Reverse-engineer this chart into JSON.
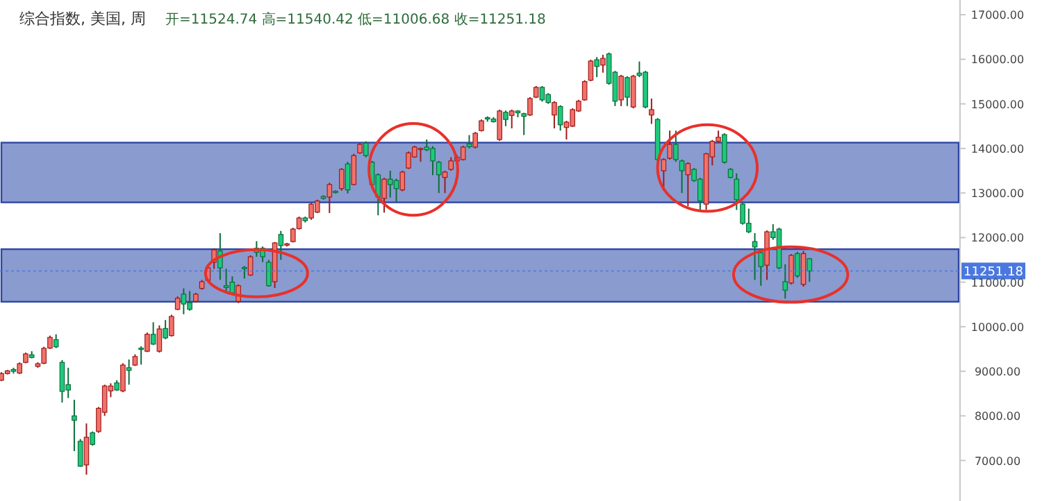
{
  "chart_data": {
    "type": "candlestick",
    "title": "综合指数, 美国, 周",
    "subtitle": "开=11524.74 高=11540.42 低=11006.68 收=11251.18",
    "categories": [
      null,
      null,
      null,
      null,
      null,
      null,
      null,
      null,
      null,
      null,
      null,
      null,
      null,
      null,
      null,
      null,
      null,
      null,
      null,
      null,
      null,
      null,
      null,
      null,
      null,
      null,
      null,
      null,
      null,
      null,
      null,
      null,
      null,
      null,
      null,
      null,
      null,
      null,
      null,
      null,
      null,
      null,
      null,
      null,
      null,
      null,
      null,
      null,
      null,
      null,
      null,
      null,
      null,
      null,
      null,
      null,
      null,
      null,
      null,
      null,
      null,
      null,
      null,
      null,
      null,
      null,
      null,
      null,
      null,
      null,
      null,
      null,
      null,
      null,
      null,
      null,
      null,
      null,
      null,
      null,
      null,
      null,
      null,
      null,
      null,
      null,
      null,
      null,
      null,
      null,
      null,
      null,
      null,
      null,
      null,
      null,
      null,
      null,
      null,
      null,
      null,
      null,
      null,
      null,
      null,
      null,
      null,
      null,
      null,
      null,
      null,
      null,
      null,
      null,
      null,
      null,
      null,
      null,
      null,
      null,
      null,
      null,
      null,
      null,
      null,
      null,
      null,
      null,
      null,
      null,
      null,
      null,
      null,
      null,
      null,
      null,
      null,
      null,
      null,
      null,
      null,
      null,
      null,
      null,
      null,
      null,
      null,
      null,
      null,
      null,
      null,
      null,
      null,
      null,
      null,
      null,
      null,
      null
    ],
    "ohlc": [
      [
        8800,
        8980,
        8780,
        8950
      ],
      [
        8950,
        9030,
        8930,
        9010
      ],
      [
        9040,
        9080,
        8950,
        9000
      ],
      [
        8960,
        9200,
        8940,
        9170
      ],
      [
        9200,
        9420,
        9180,
        9390
      ],
      [
        9370,
        9450,
        9290,
        9310
      ],
      [
        9110,
        9200,
        9080,
        9170
      ],
      [
        9180,
        9550,
        9160,
        9515
      ],
      [
        9520,
        9800,
        9500,
        9760
      ],
      [
        9710,
        9830,
        9520,
        9550
      ],
      [
        9200,
        9250,
        8300,
        8550
      ],
      [
        8700,
        9080,
        8400,
        8580
      ],
      [
        8000,
        8360,
        7210,
        7900
      ],
      [
        7430,
        7480,
        6860,
        6870
      ],
      [
        6900,
        7830,
        6680,
        7520
      ],
      [
        7620,
        7650,
        7330,
        7360
      ],
      [
        7650,
        8200,
        7620,
        8170
      ],
      [
        8080,
        8700,
        8000,
        8670
      ],
      [
        8560,
        8730,
        8420,
        8670
      ],
      [
        8740,
        8800,
        8560,
        8580
      ],
      [
        8560,
        9180,
        8530,
        9140
      ],
      [
        9080,
        9265,
        8700,
        9020
      ],
      [
        9140,
        9380,
        9120,
        9330
      ],
      [
        9520,
        9560,
        9150,
        9490
      ],
      [
        9450,
        9870,
        9430,
        9830
      ],
      [
        9830,
        10100,
        9590,
        9610
      ],
      [
        9450,
        10030,
        9420,
        9950
      ],
      [
        9960,
        10150,
        9720,
        9750
      ],
      [
        9800,
        10270,
        9780,
        10230
      ],
      [
        10390,
        10680,
        10370,
        10640
      ],
      [
        10730,
        10860,
        10280,
        10510
      ],
      [
        10540,
        10800,
        10360,
        10390
      ],
      [
        10570,
        10760,
        10540,
        10730
      ],
      [
        10860,
        11050,
        10830,
        11010
      ],
      [
        11040,
        11400,
        11020,
        11320
      ],
      [
        11445,
        11760,
        11300,
        11725
      ],
      [
        11700,
        12100,
        11050,
        11320
      ],
      [
        10920,
        11300,
        10800,
        10880
      ],
      [
        11000,
        11130,
        10740,
        10760
      ],
      [
        10570,
        10950,
        10530,
        10920
      ],
      [
        11330,
        11360,
        11080,
        11300
      ],
      [
        11160,
        11600,
        11140,
        11570
      ],
      [
        11760,
        11920,
        11570,
        11670
      ],
      [
        11760,
        11800,
        11450,
        11570
      ],
      [
        11445,
        11500,
        10900,
        10920
      ],
      [
        11010,
        11900,
        10870,
        11880
      ],
      [
        12070,
        12150,
        11500,
        11820
      ],
      [
        11830,
        11880,
        11800,
        11860
      ],
      [
        11910,
        12220,
        11890,
        12190
      ],
      [
        12200,
        12470,
        12180,
        12440
      ],
      [
        12440,
        12470,
        12340,
        12380
      ],
      [
        12440,
        12780,
        12400,
        12750
      ],
      [
        12570,
        12850,
        12550,
        12820
      ],
      [
        12920,
        12950,
        12850,
        12880
      ],
      [
        12910,
        13230,
        12550,
        13190
      ],
      [
        13040,
        13060,
        12990,
        13010
      ],
      [
        13100,
        13560,
        13050,
        13530
      ],
      [
        13650,
        13700,
        12990,
        13070
      ],
      [
        13190,
        13880,
        13170,
        13840
      ],
      [
        13900,
        14120,
        13880,
        14090
      ],
      [
        14120,
        14160,
        13800,
        13840
      ],
      [
        13690,
        13720,
        13100,
        13190
      ],
      [
        13410,
        13440,
        12500,
        12910
      ],
      [
        12880,
        13340,
        12560,
        13310
      ],
      [
        13310,
        13500,
        12900,
        13190
      ],
      [
        13280,
        13320,
        12800,
        13100
      ],
      [
        13070,
        13500,
        13040,
        13470
      ],
      [
        13560,
        13930,
        13540,
        13900
      ],
      [
        13810,
        14060,
        13790,
        14030
      ],
      [
        13990,
        14020,
        13700,
        14000
      ],
      [
        14030,
        14200,
        13940,
        13970
      ],
      [
        14000,
        14050,
        13400,
        13720
      ],
      [
        13690,
        13720,
        13000,
        13410
      ],
      [
        13350,
        13500,
        13000,
        13470
      ],
      [
        13530,
        13800,
        13500,
        13720
      ],
      [
        13720,
        13850,
        13600,
        13800
      ],
      [
        13750,
        14060,
        13730,
        14030
      ],
      [
        14100,
        14300,
        14000,
        14040
      ],
      [
        14030,
        14370,
        14000,
        14340
      ],
      [
        14400,
        14650,
        14380,
        14620
      ],
      [
        14690,
        14720,
        14600,
        14660
      ],
      [
        14660,
        14700,
        14580,
        14600
      ],
      [
        14200,
        14870,
        14170,
        14840
      ],
      [
        14810,
        14850,
        14500,
        14650
      ],
      [
        14740,
        14870,
        14450,
        14840
      ],
      [
        14840,
        14860,
        14700,
        14800
      ],
      [
        14780,
        14800,
        14300,
        14720
      ],
      [
        14750,
        15150,
        14730,
        15120
      ],
      [
        15150,
        15400,
        15130,
        15370
      ],
      [
        15370,
        15400,
        15050,
        15090
      ],
      [
        15210,
        15240,
        15000,
        15030
      ],
      [
        14750,
        15060,
        14450,
        15030
      ],
      [
        14940,
        14970,
        14400,
        14530
      ],
      [
        14470,
        14620,
        14200,
        14590
      ],
      [
        14500,
        14900,
        14480,
        14870
      ],
      [
        14840,
        15090,
        14820,
        15060
      ],
      [
        15090,
        15530,
        15070,
        15500
      ],
      [
        15530,
        15990,
        15510,
        15960
      ],
      [
        15990,
        16050,
        15600,
        15840
      ],
      [
        15870,
        16100,
        15700,
        16020
      ],
      [
        16120,
        16150,
        15430,
        15460
      ],
      [
        15710,
        15740,
        14950,
        15060
      ],
      [
        15090,
        15650,
        14950,
        15620
      ],
      [
        15590,
        15620,
        14950,
        15150
      ],
      [
        14930,
        15650,
        14900,
        15620
      ],
      [
        15690,
        15950,
        15600,
        15640
      ],
      [
        15710,
        15740,
        14900,
        14930
      ],
      [
        14750,
        15120,
        14550,
        14870
      ],
      [
        14650,
        14680,
        13700,
        13750
      ],
      [
        13500,
        13780,
        13050,
        13750
      ],
      [
        13780,
        14400,
        13750,
        14090
      ],
      [
        14090,
        14400,
        13700,
        13750
      ],
      [
        13720,
        13750,
        13000,
        13500
      ],
      [
        13410,
        13690,
        12700,
        13660
      ],
      [
        13530,
        13560,
        13250,
        13280
      ],
      [
        13310,
        13340,
        12620,
        12820
      ],
      [
        12750,
        13900,
        12620,
        13880
      ],
      [
        13810,
        14190,
        13620,
        14160
      ],
      [
        14160,
        14400,
        14130,
        14250
      ],
      [
        14310,
        14340,
        13660,
        13690
      ],
      [
        13530,
        13560,
        13330,
        13350
      ],
      [
        13310,
        13440,
        12620,
        12850
      ],
      [
        12750,
        12780,
        12290,
        12320
      ],
      [
        12320,
        12650,
        12100,
        12130
      ],
      [
        11910,
        12100,
        11050,
        11790
      ],
      [
        11660,
        11700,
        10920,
        11350
      ],
      [
        11380,
        12160,
        11050,
        12130
      ],
      [
        12130,
        12300,
        11950,
        12000
      ],
      [
        12190,
        12220,
        11290,
        11320
      ],
      [
        11010,
        11400,
        10630,
        10820
      ],
      [
        10980,
        11630,
        10950,
        11600
      ],
      [
        11640,
        11680,
        11100,
        11140
      ],
      [
        10950,
        11700,
        10900,
        11640
      ],
      [
        11524.74,
        11540.42,
        11006.68,
        11251.18
      ],
      null,
      null,
      null,
      null,
      null,
      null,
      null,
      null,
      null,
      null,
      null,
      null,
      null,
      null,
      null,
      null,
      null,
      null,
      null,
      null,
      null,
      null,
      null,
      null
    ],
    "ylim": [
      6090,
      17330
    ],
    "yticks": [
      {
        "value": 7000,
        "label": "7000.00"
      },
      {
        "value": 8000,
        "label": "8000.00"
      },
      {
        "value": 9000,
        "label": "9000.00"
      },
      {
        "value": 10000,
        "label": "10000.00"
      },
      {
        "value": 11000,
        "label": "11000.00"
      },
      {
        "value": 12000,
        "label": "12000.00"
      },
      {
        "value": 13000,
        "label": "13000.00"
      },
      {
        "value": 14000,
        "label": "14000.00"
      },
      {
        "value": 15000,
        "label": "15000.00"
      },
      {
        "value": 16000,
        "label": "16000.00"
      },
      {
        "value": 17000,
        "label": "17000.00"
      }
    ],
    "tick_labels": "y",
    "ref_lines": [
      {
        "axis": "y",
        "value": 11251.18,
        "label": "11251.18",
        "color": "#4a78e0",
        "line_style": "dotted"
      }
    ],
    "bands": [
      {
        "axis": "y",
        "from": 10560,
        "to": 11740,
        "color": "#8a9bd0"
      },
      {
        "axis": "y",
        "from": 12790,
        "to": 14130,
        "color": "#8a9bd0"
      }
    ]
  }
}
